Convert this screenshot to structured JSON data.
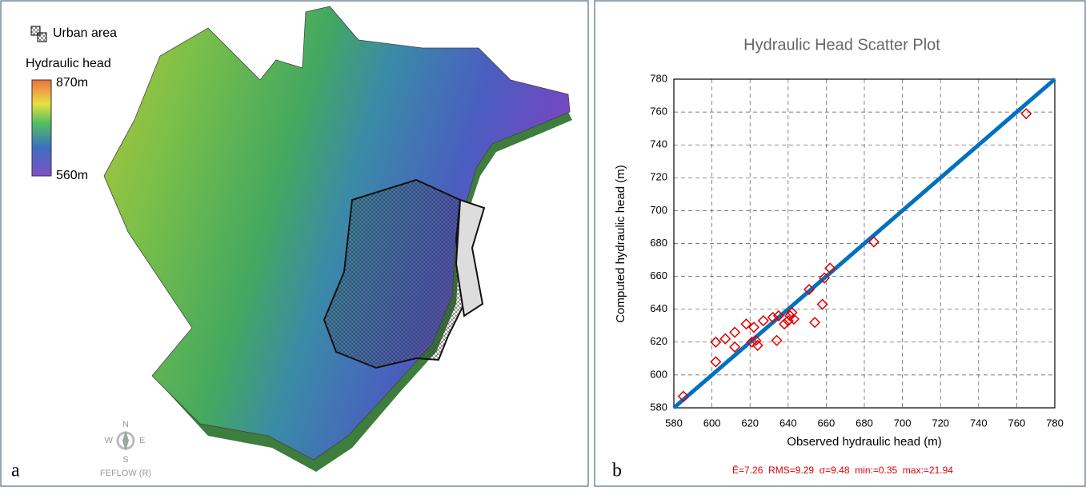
{
  "panel_a": {
    "label": "a",
    "legend": {
      "urban": "Urban area",
      "title": "Hydraulic head",
      "max": "870m",
      "min": "560m"
    },
    "compass": {
      "n": "N",
      "w": "W",
      "e": "E",
      "s": "S"
    },
    "software": "FEFLOW (R)"
  },
  "chart_data": {
    "type": "scatter",
    "panel_label": "b",
    "title": "Hydraulic Head Scatter Plot",
    "x_label": "Observed hydraulic head (m)",
    "y_label": "Computed hydraulic head (m)",
    "annotation": "Ē=7.26  RMS=9.29  σ=9.48  min:=0.35  max:=21.94",
    "xlim": [
      580,
      780
    ],
    "ylim": [
      580,
      780
    ],
    "xticks": [
      580,
      600,
      620,
      640,
      660,
      680,
      700,
      720,
      740,
      760,
      780
    ],
    "yticks": [
      580,
      600,
      620,
      640,
      660,
      680,
      700,
      720,
      740,
      760,
      780
    ],
    "grid": true,
    "points": {
      "color": "#e00000",
      "x": [
        585,
        602,
        602,
        607,
        612,
        612,
        618,
        621,
        622,
        623,
        624,
        627,
        632,
        634,
        635,
        638,
        640,
        641,
        642,
        643,
        651,
        654,
        658,
        659,
        662,
        685,
        765
      ],
      "values": [
        587,
        620,
        608,
        622,
        617,
        626,
        631,
        620,
        629,
        621,
        618,
        633,
        635,
        621,
        636,
        631,
        633,
        636,
        638,
        634,
        652,
        632,
        643,
        659,
        665,
        681,
        759
      ]
    },
    "diagonal": {
      "color": "#0070c0",
      "x": [
        580,
        780
      ],
      "values": [
        580,
        780
      ]
    }
  }
}
